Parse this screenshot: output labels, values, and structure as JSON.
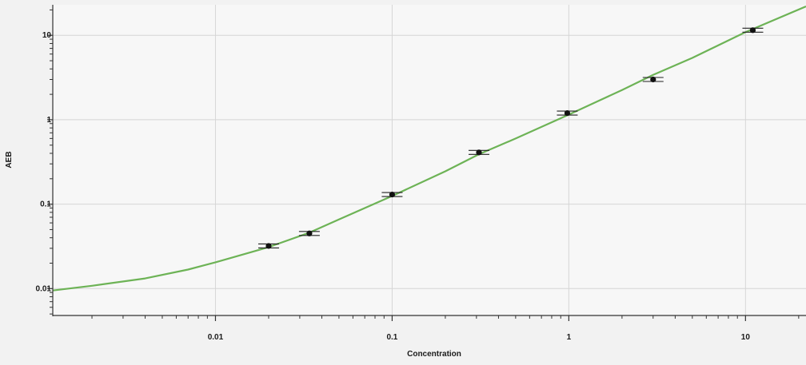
{
  "chart_data": {
    "type": "scatter",
    "title": "",
    "xlabel": "Concentration",
    "ylabel": "AEB",
    "x_scale": "log",
    "y_scale": "log",
    "xlim": [
      0.0012,
      22
    ],
    "ylim": [
      0.0048,
      23
    ],
    "grid": true,
    "x_ticks": [
      {
        "value": 0.01,
        "label": "0.01"
      },
      {
        "value": 0.1,
        "label": "0.1"
      },
      {
        "value": 1,
        "label": "1"
      },
      {
        "value": 10,
        "label": "10"
      }
    ],
    "y_ticks": [
      {
        "value": 0.01,
        "label": "0.01"
      },
      {
        "value": 0.1,
        "label": "0.1"
      },
      {
        "value": 1,
        "label": "1"
      },
      {
        "value": 10,
        "label": "10"
      }
    ],
    "points": [
      {
        "x": 0.02,
        "y": 0.032
      },
      {
        "x": 0.034,
        "y": 0.045
      },
      {
        "x": 0.1,
        "y": 0.13
      },
      {
        "x": 0.31,
        "y": 0.41
      },
      {
        "x": 0.98,
        "y": 1.2
      },
      {
        "x": 3.0,
        "y": 3.0
      },
      {
        "x": 11.0,
        "y": 11.5
      }
    ],
    "fit_curve": [
      {
        "x": 0.0012,
        "y": 0.0095
      },
      {
        "x": 0.002,
        "y": 0.0108
      },
      {
        "x": 0.004,
        "y": 0.0132
      },
      {
        "x": 0.007,
        "y": 0.0168
      },
      {
        "x": 0.01,
        "y": 0.0205
      },
      {
        "x": 0.02,
        "y": 0.031
      },
      {
        "x": 0.034,
        "y": 0.046
      },
      {
        "x": 0.05,
        "y": 0.066
      },
      {
        "x": 0.1,
        "y": 0.125
      },
      {
        "x": 0.2,
        "y": 0.245
      },
      {
        "x": 0.31,
        "y": 0.39
      },
      {
        "x": 0.5,
        "y": 0.6
      },
      {
        "x": 1.0,
        "y": 1.15
      },
      {
        "x": 2.0,
        "y": 2.25
      },
      {
        "x": 3.0,
        "y": 3.4
      },
      {
        "x": 5.0,
        "y": 5.4
      },
      {
        "x": 10.0,
        "y": 10.9
      },
      {
        "x": 22.0,
        "y": 22.0
      }
    ],
    "colors": {
      "curve": "#6db356",
      "points": "#111111",
      "grid": "#d6d6d6",
      "axis": "#333333",
      "plot_background": "#f7f7f7"
    }
  }
}
